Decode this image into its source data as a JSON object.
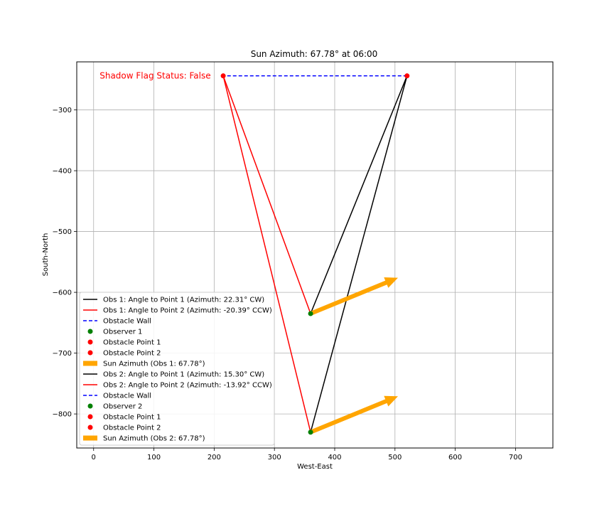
{
  "chart_data": {
    "type": "line",
    "title": "Sun Azimuth: 67.78° at 06:00",
    "xlabel": "West-East",
    "ylabel": "South-North",
    "xlim": [
      -28,
      762
    ],
    "ylim": [
      -856,
      -221
    ],
    "xticks": [
      0,
      100,
      200,
      300,
      400,
      500,
      600,
      700
    ],
    "yticks": [
      -800,
      -700,
      -600,
      -500,
      -400,
      -300
    ],
    "grid": true,
    "annotation": {
      "text": "Shadow Flag Status: False",
      "color": "#ff0000",
      "x": 10,
      "y": -244
    },
    "obstacle": {
      "p1": [
        520,
        -244
      ],
      "p2": [
        215,
        -244
      ]
    },
    "observers": [
      {
        "label": "Observer 1",
        "x": 360,
        "y": -635
      },
      {
        "label": "Observer 2",
        "x": 360,
        "y": -830
      }
    ],
    "sun_arrows": [
      {
        "from": [
          360,
          -635
        ],
        "to": [
          505,
          -576
        ]
      },
      {
        "from": [
          360,
          -830
        ],
        "to": [
          505,
          -771
        ]
      }
    ],
    "legend_position": "lower left",
    "legend": [
      {
        "label": "Obs 1: Angle to Point 1 (Azimuth: 22.31° CW)",
        "kind": "line",
        "color": "#000000"
      },
      {
        "label": "Obs 1: Angle to Point 2 (Azimuth: -20.39° CCW)",
        "kind": "line",
        "color": "#ff0000"
      },
      {
        "label": "Obstacle Wall",
        "kind": "dash",
        "color": "#0000ff"
      },
      {
        "label": "Observer 1",
        "kind": "dot",
        "color": "#008000"
      },
      {
        "label": "Obstacle Point 1",
        "kind": "dot",
        "color": "#ff0000"
      },
      {
        "label": "Obstacle Point 2",
        "kind": "dot",
        "color": "#ff0000"
      },
      {
        "label": "Sun Azimuth (Obs 1: 67.78°)",
        "kind": "patch",
        "color": "#ffa500"
      },
      {
        "label": "Obs 2: Angle to Point 1 (Azimuth: 15.30° CW)",
        "kind": "line",
        "color": "#000000"
      },
      {
        "label": "Obs 2: Angle to Point 2 (Azimuth: -13.92° CCW)",
        "kind": "line",
        "color": "#ff0000"
      },
      {
        "label": "Obstacle Wall",
        "kind": "dash",
        "color": "#0000ff"
      },
      {
        "label": "Observer 2",
        "kind": "dot",
        "color": "#008000"
      },
      {
        "label": "Obstacle Point 1",
        "kind": "dot",
        "color": "#ff0000"
      },
      {
        "label": "Obstacle Point 2",
        "kind": "dot",
        "color": "#ff0000"
      },
      {
        "label": "Sun Azimuth (Obs 2: 67.78°)",
        "kind": "patch",
        "color": "#ffa500"
      }
    ]
  }
}
